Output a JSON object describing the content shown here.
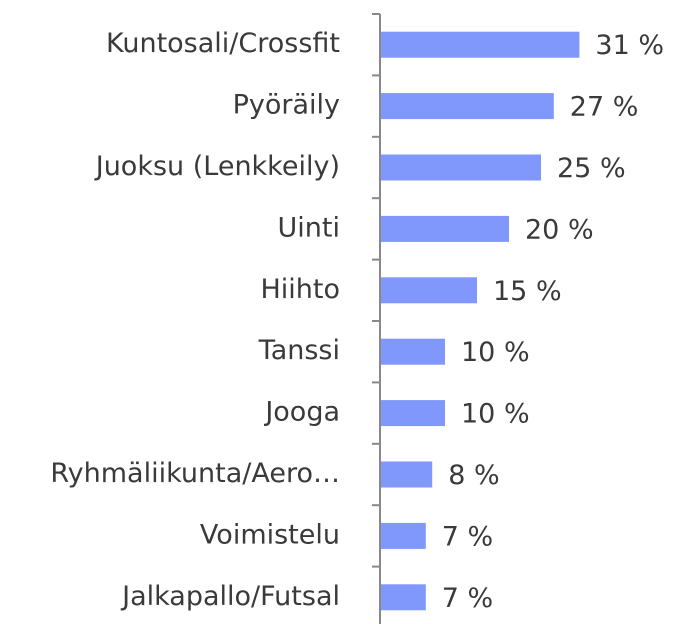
{
  "chart_data": {
    "type": "bar",
    "orientation": "horizontal",
    "categories": [
      "Kuntosali/Crossfit",
      "Pyöräily",
      "Juoksu (Lenkkeily)",
      "Uinti",
      "Hiihto",
      "Tanssi",
      "Jooga",
      "Ryhmäliikunta/Aero…",
      "Voimistelu",
      "Jalkapallo/Futsal"
    ],
    "values": [
      31,
      27,
      25,
      20,
      15,
      10,
      10,
      8,
      7,
      7
    ],
    "value_labels": [
      "31 %",
      "27 %",
      "25 %",
      "20 %",
      "15 %",
      "10 %",
      "10 %",
      "8 %",
      "7 %",
      "7 %"
    ],
    "color": "#8097fb"
  }
}
